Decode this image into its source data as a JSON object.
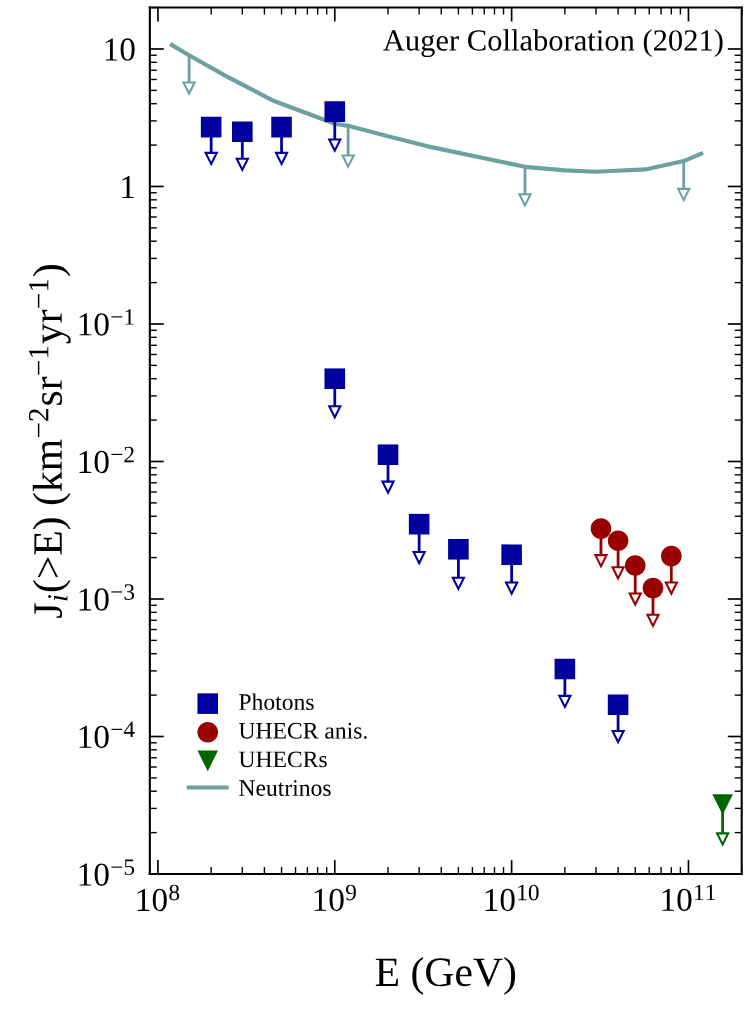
{
  "chart_data": {
    "type": "scatter",
    "xlabel": "E (GeV)",
    "ylabel": "J$_{i}$(>E) (km$^{−2}$sr$^{−1}$yr$^{−1}$)",
    "annotations": [
      "Auger Collaboration (2021)"
    ],
    "log": "xy",
    "xlim": [
      90000000.0,
      200000000000.0
    ],
    "xticks": [
      {
        "value": 100000000.0,
        "label": "10$^{8}$"
      },
      {
        "value": 1000000000.0,
        "label": "10$^{9}$"
      },
      {
        "value": 10000000000.0,
        "label": "10$^{10}$"
      },
      {
        "value": 100000000000.0,
        "label": "10$^{11}$"
      }
    ],
    "ylim": [
      1e-05,
      20
    ],
    "yticks": [
      {
        "value": 1e-05,
        "label": "10$^{−5}$"
      },
      {
        "value": 0.0001,
        "label": "10$^{−4}$"
      },
      {
        "value": 0.001,
        "label": "10$^{−3}$"
      },
      {
        "value": 0.01,
        "label": "10$^{−2}$"
      },
      {
        "value": 0.1,
        "label": "10$^{−1}$"
      },
      {
        "value": 1,
        "label": "1"
      },
      {
        "value": 10,
        "label": "10"
      }
    ],
    "grid": false,
    "legend": "bottom left",
    "series": [
      {
        "name": "Photons",
        "marker": "square",
        "color": "#00009c",
        "x": [
          200000000.0,
          300000000.0,
          500000000.0,
          1000000000.0,
          1000000000.0,
          2000000000.0,
          3000000000.0,
          5000000000.0,
          10000000000.0,
          20000000000.0,
          40000000000.0
        ],
        "values": [
          2.7,
          2.5,
          2.7,
          3.5,
          0.04,
          0.0112,
          0.0035,
          0.0023,
          0.0021,
          0.00031,
          0.00017
        ],
        "errors": [
          [
            1.6,
            2.7
          ],
          [
            1.45,
            2.5
          ],
          [
            1.6,
            2.7
          ],
          [
            2.0,
            3.5
          ],
          [
            0.023,
            0.04
          ],
          [
            0.0065,
            0.0112
          ],
          [
            0.002,
            0.0035
          ],
          [
            0.0013,
            0.0023
          ],
          [
            0.0012,
            0.0021
          ],
          [
            0.00018,
            0.00031
          ],
          [
            0.0001,
            0.00017
          ]
        ]
      },
      {
        "name": "UHECR anis.",
        "marker": "circle",
        "color": "#990000",
        "x": [
          32000000000.0,
          40000000000.0,
          50000000000.0,
          63000000000.0,
          80000000000.0
        ],
        "values": [
          0.00325,
          0.00265,
          0.00175,
          0.0012,
          0.00205
        ],
        "errors": [
          [
            0.0019,
            0.00325
          ],
          [
            0.00155,
            0.00265
          ],
          [
            0.001,
            0.00175
          ],
          [
            0.0007,
            0.0012
          ],
          [
            0.0012,
            0.00205
          ]
        ]
      },
      {
        "name": "UHECRs",
        "marker": "triangle",
        "color": "#006600",
        "x": [
          156000000000.0
        ],
        "values": [
          3.2e-05
        ],
        "errors": [
          [
            1.8e-05,
            3.2e-05
          ]
        ]
      },
      {
        "name": "Neutrinos",
        "type": "line",
        "marker": "none",
        "color": "#6aa2a0",
        "x": [
          120000000.0,
          150000000.0,
          240000000.0,
          450000000.0,
          1000000000.0,
          1190000000.0,
          2000000000.0,
          3400000000.0,
          11900000000.0,
          20000000000.0,
          30000000000.0,
          57000000000.0,
          94000000000.0,
          118000000000.0
        ],
        "values": [
          10.7,
          9.0,
          6.4,
          4.2,
          2.86,
          2.76,
          2.32,
          1.95,
          1.39,
          1.31,
          1.28,
          1.33,
          1.53,
          1.73
        ],
        "errors": [
          null,
          [
            5.2,
            9.0
          ],
          null,
          null,
          null,
          [
            1.53,
            2.76
          ],
          null,
          null,
          [
            0.8,
            1.39
          ],
          null,
          null,
          null,
          [
            0.875,
            1.53
          ],
          null
        ]
      }
    ]
  }
}
